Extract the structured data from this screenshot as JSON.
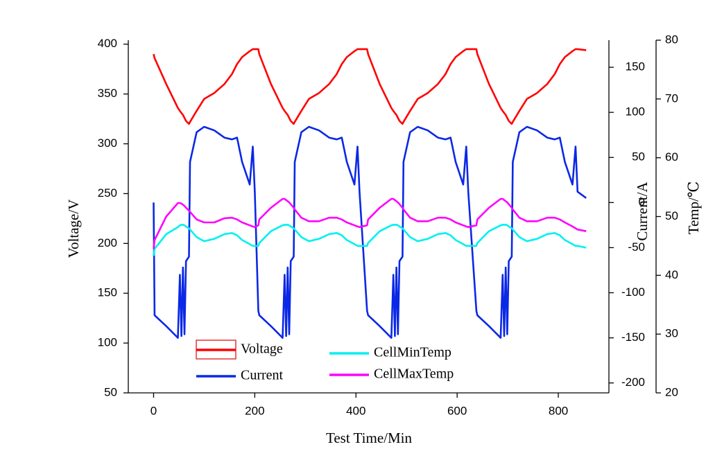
{
  "chart_data": {
    "type": "line",
    "x_label": "Test Time/Min",
    "y_label": "Voltage/V",
    "y2_label": "Current/A",
    "y3_label": "Temp/℃",
    "xlim": [
      -50,
      900
    ],
    "xticks": [
      0,
      200,
      400,
      600,
      800
    ],
    "ylim": [
      50,
      404
    ],
    "yticks": [
      50,
      100,
      150,
      200,
      250,
      300,
      350,
      400
    ],
    "y2lim": [
      -211,
      180
    ],
    "y2ticks": [
      -200,
      -150,
      -100,
      -50,
      0,
      50,
      100,
      150
    ],
    "y3lim": [
      20,
      80
    ],
    "y3ticks": [
      20,
      30,
      40,
      50,
      60,
      70,
      80
    ],
    "x": [
      0,
      2,
      25,
      48,
      52,
      55,
      58,
      61,
      64,
      70,
      72,
      85,
      100,
      120,
      140,
      155,
      165,
      175,
      190,
      196,
      200,
      207,
      209,
      232,
      255,
      259,
      262,
      265,
      268,
      271,
      277,
      279,
      292,
      307,
      327,
      347,
      362,
      372,
      382,
      397,
      403,
      407,
      422,
      424,
      447,
      470,
      474,
      477,
      480,
      483,
      486,
      492,
      494,
      507,
      522,
      542,
      562,
      577,
      587,
      597,
      612,
      618,
      622,
      638,
      640,
      663,
      686,
      690,
      693,
      696,
      699,
      702,
      708,
      710,
      723,
      738,
      758,
      778,
      793,
      803,
      813,
      828,
      834,
      838,
      855
    ],
    "series": [
      {
        "name": "Voltage",
        "color": "#ff0000",
        "axis": "y",
        "values": [
          390,
          386,
          360,
          336,
          333,
          331,
          329,
          326,
          323,
          320,
          322,
          333,
          345,
          351,
          360,
          370,
          380,
          387,
          393,
          395,
          395,
          395,
          390,
          360,
          336,
          333,
          331,
          329,
          326,
          323,
          320,
          322,
          333,
          345,
          351,
          360,
          370,
          380,
          387,
          393,
          395,
          395,
          395,
          390,
          360,
          336,
          333,
          331,
          329,
          326,
          323,
          320,
          322,
          333,
          345,
          351,
          360,
          370,
          380,
          387,
          393,
          395,
          395,
          395,
          390,
          360,
          336,
          333,
          331,
          329,
          326,
          323,
          320,
          322,
          333,
          345,
          351,
          360,
          370,
          380,
          387,
          393,
          395,
          395,
          394
        ]
      },
      {
        "name": "Current",
        "color": "#0a28e6",
        "axis": "y2",
        "values": [
          0,
          -125,
          -137,
          -150,
          -80,
          -148,
          -72,
          -146,
          -65,
          -60,
          45,
          78,
          84,
          80,
          72,
          70,
          72,
          45,
          20,
          62,
          12,
          -120,
          -125,
          -137,
          -150,
          -80,
          -148,
          -72,
          -146,
          -65,
          -60,
          45,
          78,
          84,
          80,
          72,
          70,
          72,
          45,
          20,
          62,
          12,
          -120,
          -125,
          -137,
          -150,
          -80,
          -148,
          -72,
          -146,
          -65,
          -60,
          45,
          78,
          84,
          80,
          72,
          70,
          72,
          45,
          20,
          62,
          12,
          -120,
          -125,
          -137,
          -150,
          -80,
          -148,
          -72,
          -146,
          -65,
          -60,
          45,
          78,
          84,
          80,
          72,
          70,
          72,
          45,
          20,
          62,
          12,
          5
        ]
      },
      {
        "name": "CellMinTemp",
        "color": "#00f0f0",
        "axis": "y3",
        "values": [
          43.3,
          44.5,
          47,
          48.2,
          48.5,
          48.6,
          48.6,
          48.5,
          48.3,
          48,
          47.8,
          46.5,
          45.8,
          46.2,
          47,
          47.2,
          46.8,
          46,
          45.3,
          45,
          45,
          45,
          45.5,
          47.5,
          48.5,
          48.6,
          48.6,
          48.6,
          48.5,
          48.3,
          48,
          47.8,
          46.5,
          45.8,
          46.2,
          47,
          47.2,
          46.8,
          46,
          45.3,
          45,
          45,
          45,
          45.5,
          47.5,
          48.5,
          48.6,
          48.6,
          48.6,
          48.5,
          48.3,
          48,
          47.8,
          46.5,
          45.8,
          46.2,
          47,
          47.2,
          46.8,
          46,
          45.3,
          45,
          45,
          45,
          45.5,
          47.5,
          48.5,
          48.6,
          48.6,
          48.6,
          48.5,
          48.3,
          48,
          47.8,
          46.5,
          45.8,
          46.2,
          47,
          47.2,
          46.8,
          46,
          45.3,
          45,
          45,
          44.7
        ]
      },
      {
        "name": "CellMaxTemp",
        "color": "#ff00ff",
        "axis": "y3",
        "values": [
          44.5,
          46,
          50,
          52.3,
          52.3,
          52.2,
          52,
          51.8,
          51.5,
          51,
          50.8,
          49.5,
          49,
          49,
          49.7,
          49.8,
          49.5,
          49,
          48.5,
          48.3,
          48.2,
          48.5,
          49.5,
          51.5,
          53,
          53,
          52.8,
          52.6,
          52.4,
          52.1,
          51.5,
          51.2,
          49.8,
          49.2,
          49.2,
          49.8,
          49.8,
          49.5,
          49,
          48.5,
          48.3,
          48.2,
          48.5,
          49.5,
          51.5,
          53,
          53,
          52.8,
          52.6,
          52.4,
          52.1,
          51.5,
          51.2,
          49.8,
          49.2,
          49.2,
          49.8,
          49.8,
          49.5,
          49,
          48.5,
          48.3,
          48.2,
          48.5,
          49.5,
          51.5,
          53,
          53,
          52.8,
          52.6,
          52.4,
          52.1,
          51.5,
          51.2,
          49.8,
          49.2,
          49.2,
          49.8,
          49.8,
          49.5,
          49,
          48.3,
          48,
          47.8,
          47.5
        ]
      }
    ]
  }
}
